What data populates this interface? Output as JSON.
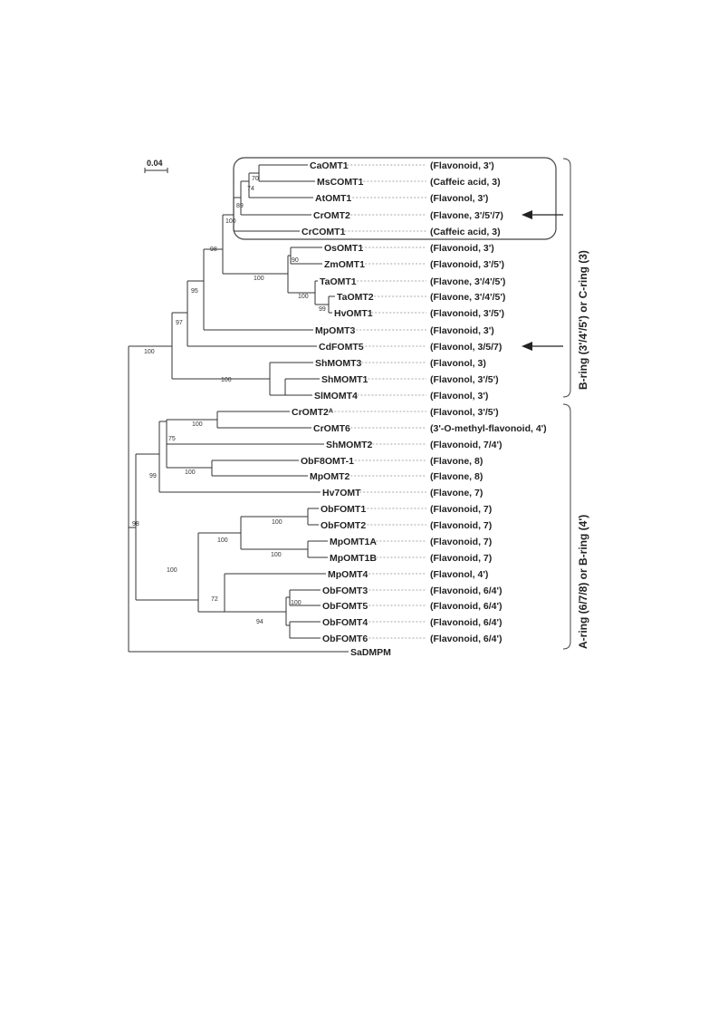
{
  "scale_bar": "0.04",
  "taxa": [
    {
      "name": "CaOMT1",
      "annotation": "(Flavonoid, 3')"
    },
    {
      "name": "MsCOMT1",
      "annotation": "(Caffeic acid, 3)"
    },
    {
      "name": "AtOMT1",
      "annotation": "(Flavonol, 3')"
    },
    {
      "name": "CrOMT2",
      "annotation": "(Flavone, 3'/5'/7)"
    },
    {
      "name": "CrCOMT1",
      "annotation": "(Caffeic acid, 3)"
    },
    {
      "name": "OsOMT1",
      "annotation": "(Flavonoid, 3')"
    },
    {
      "name": "ZmOMT1",
      "annotation": "(Flavonoid, 3'/5')"
    },
    {
      "name": "TaOMT1",
      "annotation": "(Flavone, 3'/4'/5')"
    },
    {
      "name": "TaOMT2",
      "annotation": "(Flavone, 3'/4'/5')"
    },
    {
      "name": "HvOMT1",
      "annotation": "(Flavonoid, 3'/5')"
    },
    {
      "name": "MpOMT3",
      "annotation": "(Flavonoid, 3')"
    },
    {
      "name": "CdFOMT5",
      "annotation": "(Flavonol, 3/5/7)"
    },
    {
      "name": "ShMOMT3",
      "annotation": "(Flavonol, 3)"
    },
    {
      "name": "ShMOMT1",
      "annotation": "(Flavonol, 3'/5')"
    },
    {
      "name": "SlMOMT4",
      "annotation": "(Flavonol, 3')"
    },
    {
      "name": "CrOMT2ᴬ",
      "annotation": "(Flavonol, 3'/5')"
    },
    {
      "name": "CrOMT6",
      "annotation": "(3'-O-methyl-flavonoid, 4')"
    },
    {
      "name": "ShMOMT2",
      "annotation": "(Flavonoid, 7/4')"
    },
    {
      "name": "ObF8OMT-1",
      "annotation": "(Flavone, 8)"
    },
    {
      "name": "MpOMT2",
      "annotation": "(Flavone, 8)"
    },
    {
      "name": "Hv7OMT",
      "annotation": "(Flavone, 7)"
    },
    {
      "name": "ObFOMT1",
      "annotation": "(Flavonoid, 7)"
    },
    {
      "name": "ObFOMT2",
      "annotation": "(Flavonoid, 7)"
    },
    {
      "name": "MpOMT1A",
      "annotation": "(Flavonoid, 7)"
    },
    {
      "name": "MpOMT1B",
      "annotation": "(Flavonoid, 7)"
    },
    {
      "name": "MpOMT4",
      "annotation": "(Flavonol, 4')"
    },
    {
      "name": "ObFOMT3",
      "annotation": "(Flavonoid, 6/4')"
    },
    {
      "name": "ObFOMT5",
      "annotation": "(Flavonoid, 6/4')"
    },
    {
      "name": "ObFOMT4",
      "annotation": "(Flavonoid, 6/4')"
    },
    {
      "name": "ObFOMT6",
      "annotation": "(Flavonoid, 6/4')"
    },
    {
      "name": "SaDMPM",
      "annotation": ""
    }
  ],
  "bootstrap": [
    "70",
    "74",
    "89",
    "100",
    "98",
    "90",
    "100",
    "100",
    "99",
    "95",
    "97",
    "100",
    "100",
    "100",
    "75",
    "100",
    "99",
    "98",
    "100",
    "100",
    "100",
    "100",
    "72",
    "100",
    "94"
  ],
  "brackets": [
    {
      "label": "B-ring (3'/4'/5') or C-ring (3)"
    },
    {
      "label": "A-ring (6/7/8) or B-ring (4')"
    }
  ]
}
